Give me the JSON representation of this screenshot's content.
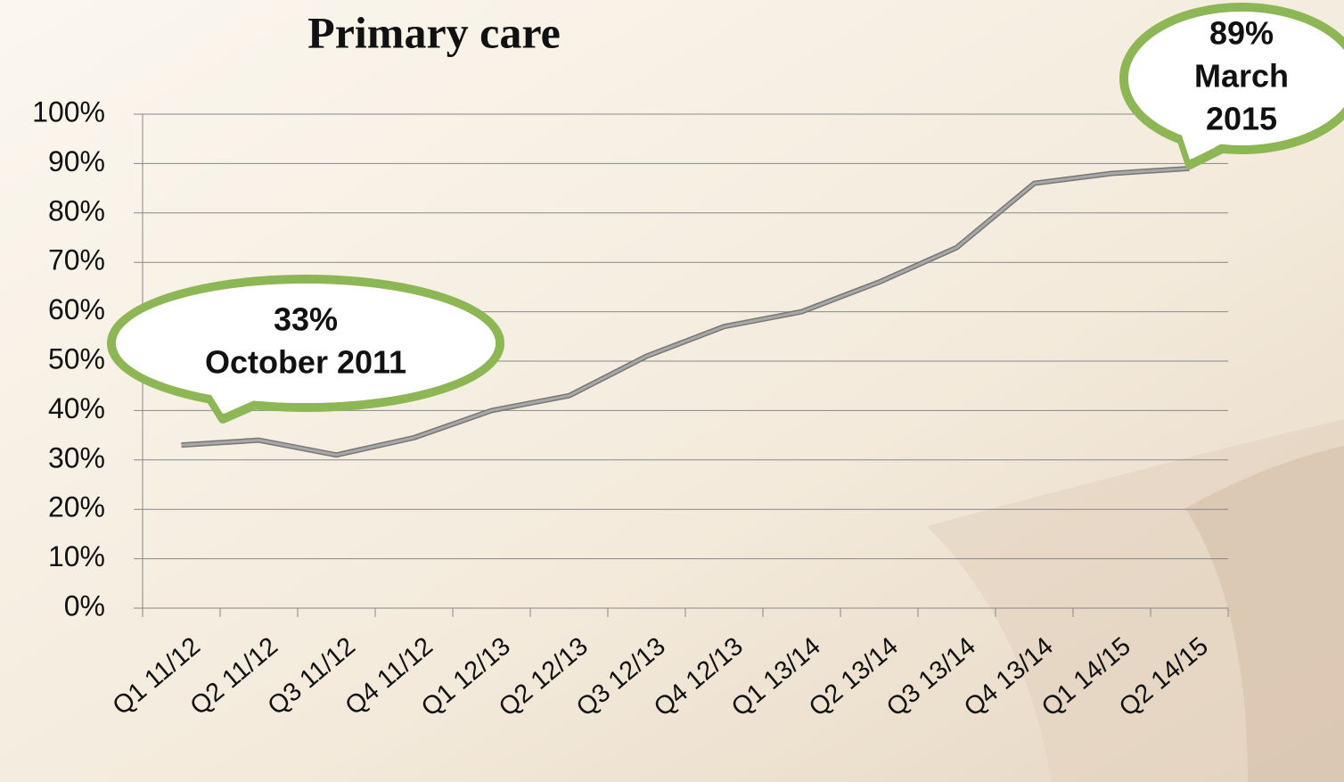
{
  "chart_data": {
    "type": "line",
    "title": "Primary care",
    "categories": [
      "Q1 11/12",
      "Q2 11/12",
      "Q3 11/12",
      "Q4 11/12",
      "Q1 12/13",
      "Q2 12/13",
      "Q3 12/13",
      "Q4 12/13",
      "Q1 13/14",
      "Q2 13/14",
      "Q3 13/14",
      "Q4 13/14",
      "Q1 14/15",
      "Q2 14/15"
    ],
    "values": [
      33,
      34,
      31,
      34.5,
      40,
      43,
      51,
      57,
      60,
      66,
      73,
      86,
      88,
      89
    ],
    "color": "#a8a8a8",
    "ylim": [
      0,
      100
    ],
    "yticks": [
      {
        "value": 0,
        "label": "0%"
      },
      {
        "value": 10,
        "label": "10%"
      },
      {
        "value": 20,
        "label": "20%"
      },
      {
        "value": 30,
        "label": "30%"
      },
      {
        "value": 40,
        "label": "40%"
      },
      {
        "value": 50,
        "label": "50%"
      },
      {
        "value": 60,
        "label": "60%"
      },
      {
        "value": 70,
        "label": "70%"
      },
      {
        "value": 80,
        "label": "80%"
      },
      {
        "value": 90,
        "label": "90%"
      },
      {
        "value": 100,
        "label": "100%"
      }
    ],
    "grid": true,
    "annotations": [
      {
        "lines": [
          "33%",
          "October 2011"
        ]
      },
      {
        "lines": [
          "89%",
          "March",
          "2015"
        ]
      }
    ]
  }
}
